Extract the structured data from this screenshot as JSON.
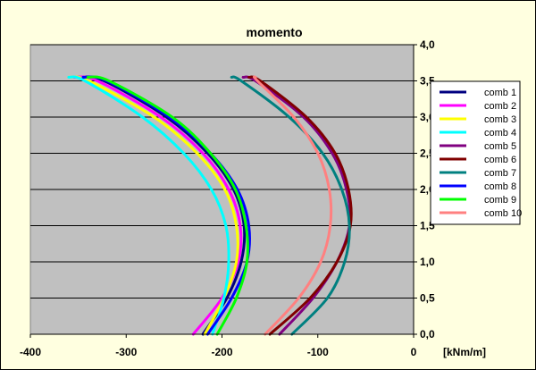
{
  "chart_data": {
    "type": "line",
    "title": "momento",
    "xlabel": "[kNm/m]",
    "ylabel": "",
    "xlim": [
      -400,
      0
    ],
    "ylim": [
      0,
      4
    ],
    "x_ticks": [
      "-400",
      "-300",
      "-200",
      "-100",
      "0"
    ],
    "y_ticks": [
      "0,0",
      "0,5",
      "1,0",
      "1,5",
      "2,0",
      "2,5",
      "3,0",
      "3,5",
      "4,0"
    ],
    "grid": "horizontal",
    "legend_position": "right",
    "heights": [
      0.0,
      0.5,
      1.0,
      1.5,
      2.0,
      2.5,
      3.0,
      3.5,
      3.55
    ],
    "series": [
      {
        "name": "comb 1",
        "color": "#000080",
        "values": [
          -220,
          -195,
          -180,
          -177,
          -188,
          -215,
          -258,
          -323,
          -350
        ]
      },
      {
        "name": "comb 2",
        "color": "#ff00ff",
        "values": [
          -230,
          -200,
          -183,
          -181,
          -193,
          -220,
          -264,
          -330,
          -355
        ]
      },
      {
        "name": "comb 3",
        "color": "#ffff00",
        "values": [
          -218,
          -198,
          -185,
          -185,
          -197,
          -226,
          -271,
          -339,
          -360
        ]
      },
      {
        "name": "comb 4",
        "color": "#00ffff",
        "values": [
          -210,
          -198,
          -193,
          -196,
          -211,
          -240,
          -283,
          -343,
          -360
        ]
      },
      {
        "name": "comb 5",
        "color": "#800080",
        "values": [
          -140,
          -105,
          -80,
          -67,
          -70,
          -85,
          -115,
          -165,
          -178
        ]
      },
      {
        "name": "comb 6",
        "color": "#800000",
        "values": [
          -150,
          -108,
          -80,
          -66,
          -68,
          -82,
          -112,
          -160,
          -172
        ]
      },
      {
        "name": "comb 7",
        "color": "#008080",
        "values": [
          -127,
          -90,
          -72,
          -67,
          -75,
          -95,
          -130,
          -180,
          -190
        ]
      },
      {
        "name": "comb 8",
        "color": "#0000ff",
        "values": [
          -215,
          -190,
          -174,
          -172,
          -184,
          -212,
          -255,
          -320,
          -345
        ]
      },
      {
        "name": "comb 9",
        "color": "#00ff00",
        "values": [
          -205,
          -185,
          -174,
          -175,
          -186,
          -212,
          -252,
          -318,
          -340
        ]
      },
      {
        "name": "comb 10",
        "color": "#ff8080",
        "values": [
          -155,
          -120,
          -97,
          -87,
          -88,
          -100,
          -125,
          -163,
          -165
        ]
      }
    ]
  }
}
